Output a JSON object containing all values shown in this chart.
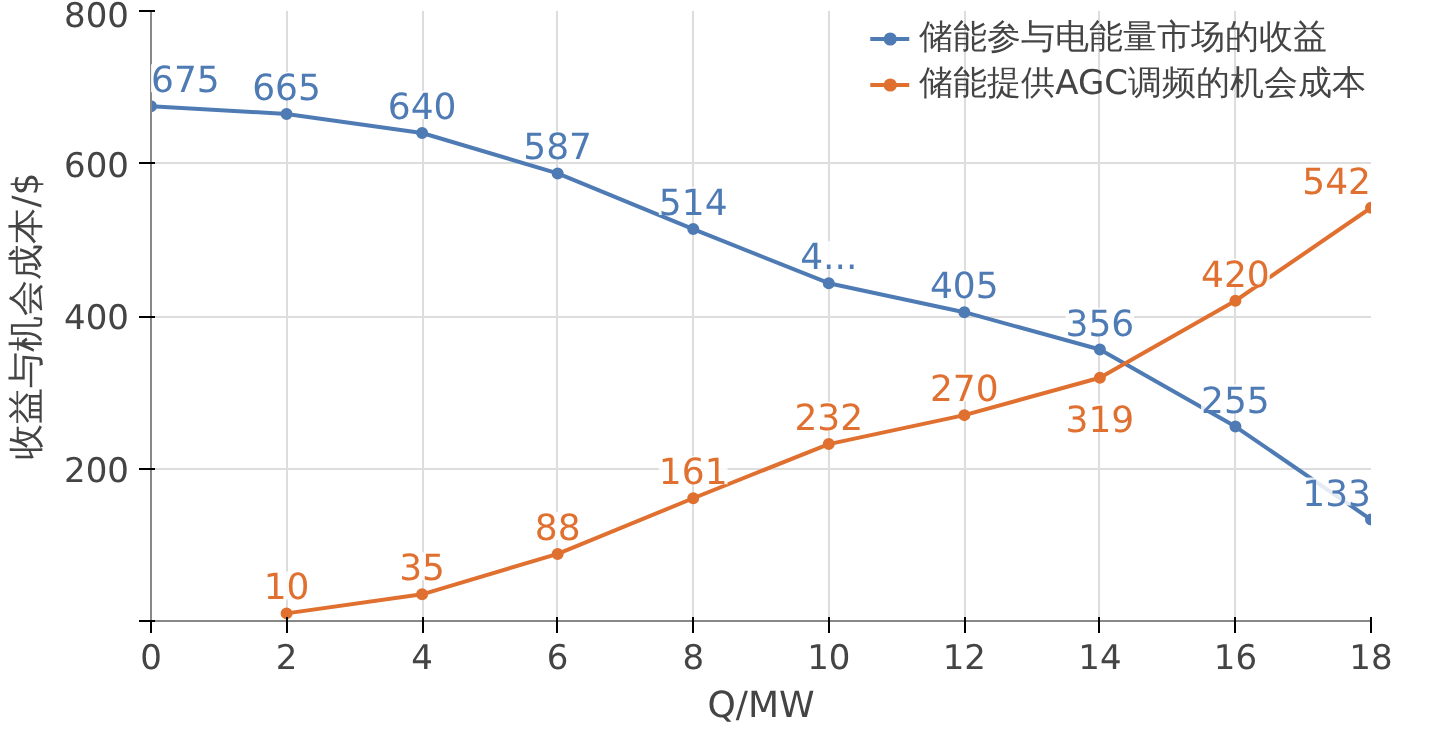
{
  "chart_data": {
    "type": "line",
    "xlabel": "Q/MW",
    "ylabel": "收益与机会成本/$",
    "xlim": [
      0,
      18
    ],
    "xticks": [
      0,
      2,
      4,
      6,
      8,
      10,
      12,
      14,
      16,
      18
    ],
    "ylim": [
      0,
      800
    ],
    "yticks": [
      {
        "value": 0,
        "label": null
      },
      200,
      400,
      600,
      800
    ],
    "grid": true,
    "legend": "top right",
    "marker": "circle",
    "line_style": "solid",
    "series": [
      {
        "name": "储能参与电能量市场的收益",
        "color": "#4f7bb5",
        "x": [
          0,
          2,
          4,
          6,
          8,
          10,
          12,
          14,
          16,
          18
        ],
        "values": [
          675,
          665,
          640,
          587,
          514,
          443,
          405,
          356,
          255,
          133
        ],
        "value_labels": [
          "675",
          "665",
          "640",
          "587",
          "514",
          "4...",
          "405",
          "356",
          "255",
          "133"
        ]
      },
      {
        "name": "储能提供AGC调频的机会成本",
        "color": "#e07030",
        "x": [
          2,
          4,
          6,
          8,
          10,
          12,
          14,
          16,
          18
        ],
        "values": [
          10,
          35,
          88,
          161,
          232,
          270,
          319,
          420,
          542
        ],
        "value_labels": [
          "10",
          "35",
          "88",
          "161",
          "232",
          "270",
          "319",
          "420",
          "542"
        ]
      }
    ]
  }
}
